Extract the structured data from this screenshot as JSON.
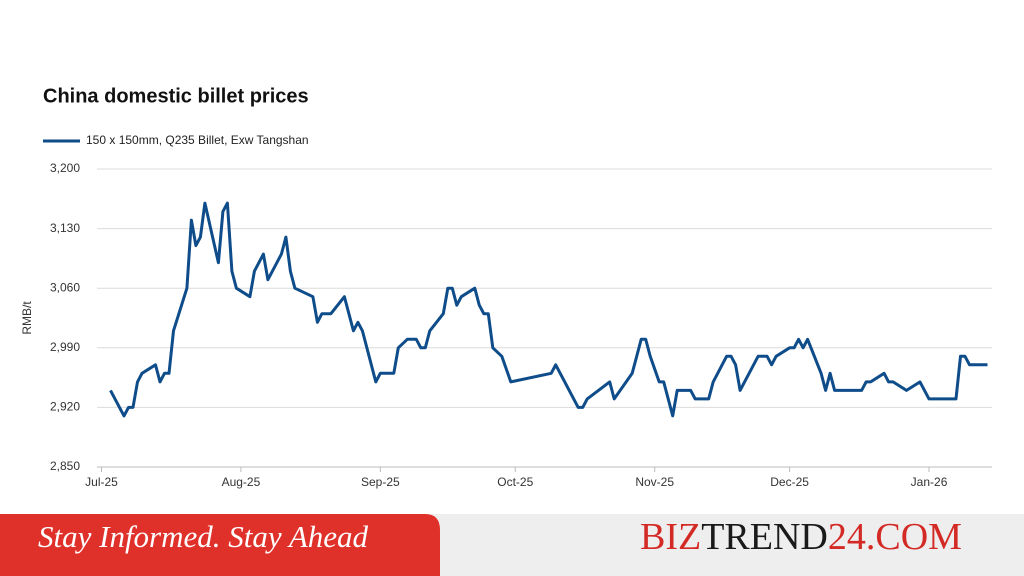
{
  "chart_data": {
    "type": "line",
    "title": "China domestic billet prices",
    "y_label": "RMB/t",
    "xlim": [
      -1,
      198
    ],
    "ylim": [
      2850,
      3200
    ],
    "xticks": [
      {
        "value": 0,
        "label": "Jul-25"
      },
      {
        "value": 31,
        "label": "Aug-25"
      },
      {
        "value": 62,
        "label": "Sep-25"
      },
      {
        "value": 92,
        "label": "Oct-25"
      },
      {
        "value": 123,
        "label": "Nov-25"
      },
      {
        "value": 153,
        "label": "Dec-25"
      },
      {
        "value": 184,
        "label": "Jan-26"
      }
    ],
    "yticks": [
      {
        "value": 2850,
        "label": "2,850"
      },
      {
        "value": 2920,
        "label": "2,920"
      },
      {
        "value": 2990,
        "label": "2,990"
      },
      {
        "value": 3060,
        "label": "3,060"
      },
      {
        "value": 3130,
        "label": "3,130"
      },
      {
        "value": 3200,
        "label": "3,200"
      }
    ],
    "grid": true,
    "legend": "top-left",
    "x": [
      2,
      5,
      6,
      7,
      8,
      9,
      12,
      13,
      14,
      15,
      16,
      19,
      20,
      21,
      22,
      23,
      26,
      27,
      28,
      29,
      30,
      33,
      34,
      36,
      37,
      40,
      41,
      42,
      43,
      47,
      48,
      49,
      51,
      54,
      56,
      57,
      58,
      61,
      62,
      65,
      66,
      68,
      70,
      71,
      72,
      73,
      76,
      77,
      78,
      79,
      80,
      83,
      84,
      85,
      86,
      87,
      89,
      91,
      100,
      101,
      105,
      106,
      107,
      108,
      113,
      114,
      118,
      120,
      121,
      122,
      124,
      125,
      127,
      128,
      131,
      132,
      135,
      136,
      139,
      140,
      141,
      142,
      146,
      148,
      149,
      150,
      153,
      154,
      155,
      156,
      157,
      160,
      161,
      162,
      163,
      169,
      170,
      171,
      174,
      175,
      176,
      179,
      182,
      184,
      190,
      191,
      192,
      193,
      197
    ],
    "series": [
      {
        "name": "150 x 150mm, Q235 Billet, Exw Tangshan",
        "color": "#0f4c8a",
        "values": [
          2940,
          2910,
          2920,
          2920,
          2950,
          2960,
          2970,
          2950,
          2960,
          2960,
          3010,
          3060,
          3140,
          3110,
          3120,
          3160,
          3090,
          3150,
          3160,
          3080,
          3060,
          3050,
          3080,
          3100,
          3070,
          3100,
          3120,
          3080,
          3060,
          3050,
          3020,
          3030,
          3030,
          3050,
          3010,
          3020,
          3010,
          2950,
          2960,
          2960,
          2990,
          3000,
          3000,
          2990,
          2990,
          3010,
          3030,
          3060,
          3060,
          3040,
          3050,
          3060,
          3040,
          3030,
          3030,
          2990,
          2980,
          2950,
          2960,
          2970,
          2930,
          2920,
          2920,
          2930,
          2950,
          2930,
          2960,
          3000,
          3000,
          2980,
          2950,
          2950,
          2910,
          2940,
          2940,
          2930,
          2930,
          2950,
          2980,
          2980,
          2970,
          2940,
          2980,
          2980,
          2970,
          2980,
          2990,
          2990,
          3000,
          2990,
          3000,
          2960,
          2940,
          2960,
          2940,
          2940,
          2950,
          2950,
          2960,
          2950,
          2950,
          2940,
          2950,
          2930,
          2930,
          2980,
          2980,
          2970,
          2970
        ]
      }
    ]
  },
  "banner": {
    "tagline": "Stay Informed. Stay Ahead",
    "brand": [
      "BIZ",
      "TREND",
      "24.COM"
    ]
  }
}
